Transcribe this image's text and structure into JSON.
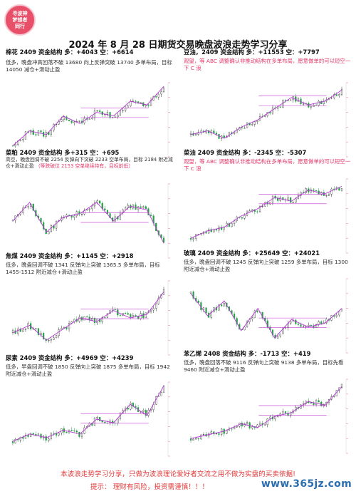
{
  "logo": {
    "lines": [
      "寻波神",
      "梦想者",
      "同行"
    ]
  },
  "title": "2024 年 8 月 28 日期货交易晚盘波浪走势学习分享",
  "panels": [
    {
      "name": "棉花 2409",
      "struct_label": "资金结构",
      "long": "多：+4043",
      "short": "空：+6614",
      "desc": "低多，晚盘冲高回落不破 13680 向上反弹突破 13740 多单布局，目标 14050 减仓+滑动止盈",
      "desc_red": ""
    },
    {
      "name": "豆油，2409",
      "struct_label": "资金结构",
      "long": "多：+11553",
      "short": "空：+7797",
      "desc": "",
      "desc_red": "观望，等 ABC 调整确认非推动结构在多单布局，愿意做单的可以短空一下 C 浪"
    },
    {
      "name": "菜粕 2409",
      "struct_label": "资金结构",
      "long": "多+315",
      "short": "空：+695",
      "desc": "高空，晚盘回调不破 2254 反弹向下突破 2233 空单布局，目标 2184 附近减仓+滑动止盈",
      "desc_red": "（等跌破位 2153 空单继续持有，目标前低）"
    },
    {
      "name": "菜油 2409",
      "struct_label": "资金结构",
      "long": "多：-2345",
      "short": "空：-5307",
      "desc": "",
      "desc_red": "观望，等 ABC 调整确认非推动结构在多单布局，愿意做单的可以短空一下 C 浪"
    },
    {
      "name": "焦煤 2409",
      "struct_label": "资金结构",
      "long": "多：+1145",
      "short": "空：+2918",
      "desc": "低多，晚盘回调不破 1341 反弹向上突破 1365.5 多单布局，目标 1455-1512 附近减仓+滑动止盈",
      "desc_red": ""
    },
    {
      "name": "玻璃 2409",
      "struct_label": "资金结构",
      "long": "多：+25649",
      "short": "空：+24021",
      "desc": "低多，晚盘回调不破 1245 反弹向上突破 1259 多单布局，目标 1300 附近减仓+滑动止盈",
      "desc_red": ""
    },
    {
      "name": "尿素 2409",
      "struct_label": "资金结构",
      "long": "多：+4969",
      "short": "空：+4239",
      "desc": "低多，早盘回调不破 1850 反弹向上突破 1875 多单布局，目标 1942 附近减仓+滑动止盈",
      "desc_red": ""
    },
    {
      "name": "苯乙烯 2408",
      "struct_label": "资金结构",
      "long": "多：-1713",
      "short": "空：+419",
      "desc": "低多，晚盘回落不破 9116 反弹向上突破 9138 多单布局，目标先看 9460 附近减仓+滑动止盈",
      "desc_red": ""
    }
  ],
  "colors": {
    "wave": "#b33ad1",
    "candle_up": "#333333",
    "candle_down": "#2a9d4a",
    "level": "#c03ad0",
    "accent_red": "#e23a6a"
  },
  "footer": {
    "line1": "本波浪走势学习分享，只做为波浪理论爱好者交流之用不做为实盘的买卖依据!",
    "line2": "提示：   理财有风险，投资需谨慎！！！"
  },
  "watermark": "www.365jz.com"
}
